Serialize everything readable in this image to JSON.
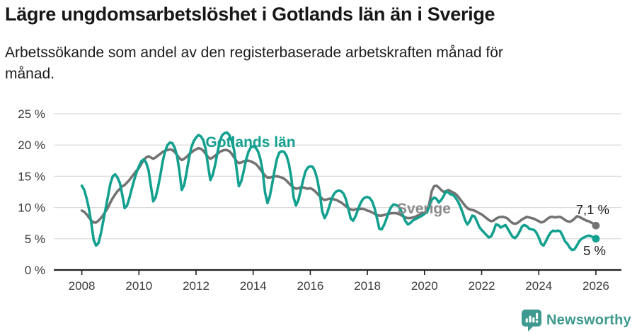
{
  "header": {
    "title": "Lägre ungdomsarbetslöshet i Gotlands län än i Sverige",
    "subtitle": "Arbetssökande som andel av den registerbaserade arbetskraften månad för månad."
  },
  "footer": {
    "brand": "Newsworthy",
    "logo_icon": "bar-chart-speech-bubble-icon"
  },
  "colors": {
    "gotland": "#13a08f",
    "sverige_line": "#737373",
    "sverige_label": "#8c8c8c",
    "grid": "#d9d9d9",
    "axis": "#1f1f1f",
    "tick_text": "#3a3a3a",
    "value_text": "#1a1a1a",
    "brand": "#3e998e"
  },
  "chart_data": {
    "type": "line",
    "title": "Lägre ungdomsarbetslöshet i Gotlands län än i Sverige",
    "subtitle": "Arbetssökande som andel av den registerbaserade arbetskraften månad för månad.",
    "x_start_year": 2008,
    "points_per_year": 12,
    "xlim": [
      2008,
      2026.08
    ],
    "ylim": [
      0,
      25
    ],
    "grid": "horizontal-only",
    "legend_position": "inline-labels",
    "y_ticks": [
      {
        "v": 25,
        "label": "25 %"
      },
      {
        "v": 20,
        "label": "20 %"
      },
      {
        "v": 15,
        "label": "15 %"
      },
      {
        "v": 10,
        "label": "10 %"
      },
      {
        "v": 5,
        "label": "5 %"
      },
      {
        "v": 0,
        "label": "0 %"
      }
    ],
    "x_ticks": [
      {
        "year": 2008,
        "label": "2008"
      },
      {
        "year": 2010,
        "label": "2010"
      },
      {
        "year": 2012,
        "label": "2012"
      },
      {
        "year": 2014,
        "label": "2014"
      },
      {
        "year": 2016,
        "label": "2016"
      },
      {
        "year": 2018,
        "label": "2018"
      },
      {
        "year": 2020,
        "label": "2020"
      },
      {
        "year": 2022,
        "label": "2022"
      },
      {
        "year": 2024,
        "label": "2024"
      },
      {
        "year": 2026,
        "label": "2026"
      }
    ],
    "series": [
      {
        "name": "Sverige",
        "color": "#737373",
        "end_label": "7,1 %",
        "end_value": 7.1,
        "values": [
          9.5,
          9.3,
          8.9,
          8.4,
          7.9,
          7.6,
          7.6,
          7.9,
          8.3,
          8.8,
          9.4,
          10.0,
          10.8,
          11.5,
          12.1,
          12.6,
          13.0,
          13.4,
          13.6,
          14.0,
          14.4,
          14.9,
          15.4,
          15.9,
          16.3,
          17.0,
          17.6,
          18.0,
          18.2,
          18.0,
          17.8,
          18.0,
          18.3,
          18.6,
          18.9,
          19.1,
          19.2,
          19.3,
          19.2,
          18.9,
          18.4,
          17.9,
          17.6,
          17.8,
          18.1,
          18.5,
          18.8,
          19.1,
          19.3,
          19.5,
          19.4,
          19.1,
          18.6,
          18.1,
          17.8,
          18.0,
          18.3,
          18.6,
          18.9,
          19.1,
          19.2,
          19.2,
          19.0,
          18.6,
          18.0,
          17.4,
          17.1,
          17.2,
          17.4,
          17.5,
          17.5,
          17.4,
          17.2,
          17.0,
          16.6,
          16.1,
          15.6,
          15.1,
          14.8,
          14.8,
          14.9,
          15.0,
          15.0,
          14.9,
          14.8,
          14.6,
          14.3,
          13.9,
          13.5,
          13.2,
          13.0,
          13.1,
          13.2,
          13.2,
          13.1,
          13.0,
          13.1,
          12.9,
          12.6,
          12.2,
          11.8,
          11.4,
          11.2,
          11.3,
          11.4,
          11.4,
          11.3,
          11.2,
          11.0,
          10.8,
          10.5,
          10.2,
          9.9,
          9.7,
          9.6,
          9.7,
          9.8,
          9.8,
          9.8,
          9.7,
          9.5,
          9.4,
          9.2,
          9.0,
          8.8,
          8.7,
          8.7,
          8.8,
          8.9,
          9.0,
          9.1,
          9.1,
          9.1,
          9.0,
          8.8,
          8.6,
          8.4,
          8.3,
          8.3,
          8.4,
          8.5,
          8.7,
          8.8,
          9.0,
          9.2,
          9.4,
          10.6,
          12.6,
          13.4,
          13.5,
          13.2,
          12.8,
          12.5,
          12.6,
          12.8,
          12.6,
          12.4,
          12.2,
          11.8,
          11.3,
          10.8,
          10.3,
          9.9,
          9.7,
          9.6,
          9.5,
          9.3,
          9.1,
          8.9,
          8.6,
          8.3,
          8.0,
          7.8,
          7.9,
          8.2,
          8.4,
          8.5,
          8.5,
          8.4,
          8.2,
          7.8,
          7.5,
          7.4,
          7.5,
          7.8,
          8.1,
          8.3,
          8.5,
          8.4,
          8.3,
          8.2,
          8.0,
          7.8,
          7.6,
          7.7,
          8.0,
          8.3,
          8.5,
          8.5,
          8.4,
          8.5,
          8.5,
          8.3,
          8.0,
          7.8,
          7.7,
          7.9,
          8.2,
          8.6,
          8.5,
          8.3,
          8.1,
          7.9,
          7.8,
          7.6,
          7.4,
          7.1
        ]
      },
      {
        "name": "Gotlands län",
        "color": "#13a08f",
        "end_label": "5 %",
        "end_value": 5.0,
        "values": [
          13.5,
          12.8,
          11.5,
          9.8,
          7.5,
          4.8,
          3.9,
          4.3,
          5.8,
          7.8,
          9.8,
          11.8,
          13.8,
          15.0,
          15.3,
          14.8,
          13.9,
          12.0,
          9.9,
          10.3,
          11.5,
          13.0,
          14.4,
          15.6,
          16.6,
          17.4,
          17.7,
          17.2,
          16.0,
          13.5,
          11.0,
          11.6,
          13.2,
          15.2,
          17.4,
          19.0,
          20.0,
          20.4,
          20.3,
          19.6,
          18.3,
          15.8,
          12.8,
          13.6,
          15.6,
          17.8,
          19.6,
          20.6,
          21.2,
          21.6,
          21.4,
          20.8,
          19.4,
          16.8,
          14.4,
          15.2,
          16.8,
          18.8,
          20.6,
          21.6,
          21.9,
          22.0,
          21.6,
          20.7,
          19.2,
          16.2,
          13.4,
          14.2,
          15.8,
          17.6,
          18.9,
          19.6,
          19.8,
          19.6,
          19.0,
          17.8,
          15.8,
          12.4,
          10.7,
          11.8,
          13.8,
          16.0,
          17.8,
          18.8,
          19.0,
          18.9,
          18.3,
          17.0,
          14.8,
          11.6,
          10.3,
          11.2,
          12.8,
          14.4,
          15.8,
          16.4,
          16.6,
          16.5,
          15.8,
          14.4,
          12.2,
          9.4,
          8.3,
          9.0,
          10.2,
          11.4,
          12.2,
          12.6,
          12.7,
          12.6,
          12.2,
          11.3,
          9.8,
          8.2,
          7.9,
          8.6,
          9.6,
          10.6,
          11.3,
          11.6,
          11.7,
          11.5,
          11.0,
          9.9,
          8.3,
          6.6,
          6.5,
          7.2,
          8.2,
          9.3,
          10.1,
          10.5,
          10.4,
          10.2,
          9.6,
          8.7,
          7.8,
          7.3,
          7.5,
          7.9,
          8.1,
          8.3,
          8.5,
          8.7,
          9.0,
          9.2,
          10.2,
          11.2,
          11.6,
          11.4,
          10.8,
          11.2,
          11.8,
          12.6,
          12.4,
          12.1,
          12.0,
          11.6,
          11.0,
          10.2,
          9.2,
          8.0,
          7.3,
          7.8,
          8.7,
          8.6,
          7.8,
          6.9,
          6.4,
          6.0,
          5.6,
          5.2,
          5.4,
          6.2,
          7.3,
          7.2,
          6.8,
          7.0,
          7.2,
          6.6,
          5.9,
          5.3,
          5.1,
          5.5,
          6.2,
          7.0,
          7.2,
          7.0,
          6.6,
          6.5,
          6.4,
          6.0,
          5.2,
          4.2,
          3.9,
          4.6,
          5.4,
          6.0,
          6.3,
          6.2,
          6.3,
          6.2,
          5.5,
          4.6,
          4.2,
          3.6,
          3.2,
          3.3,
          3.9,
          4.6,
          5.0,
          5.2,
          5.4,
          5.5,
          5.4,
          5.2,
          5.0
        ]
      }
    ],
    "annotations": [
      {
        "text": "Gotlands län",
        "series": "Gotlands län"
      },
      {
        "text": "Sverige",
        "series": "Sverige"
      }
    ]
  }
}
